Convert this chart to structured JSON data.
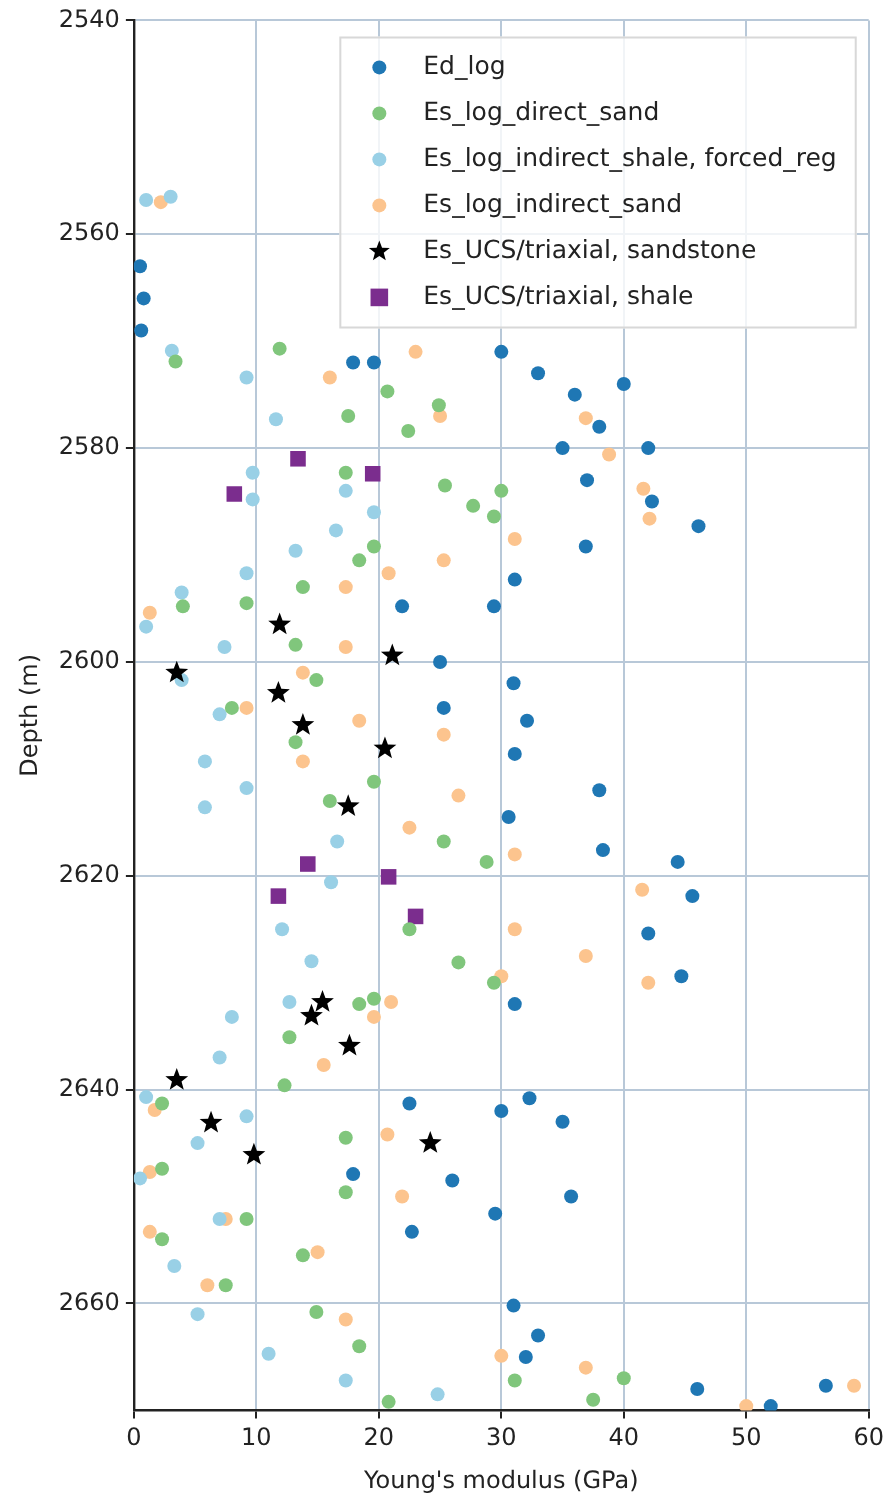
{
  "chart_data": {
    "type": "scatter",
    "xlabel": "Young's modulus (GPa)",
    "ylabel": "Depth (m)",
    "xlim": [
      0,
      60
    ],
    "xticks": [
      0,
      10,
      20,
      30,
      40,
      50,
      60
    ],
    "ylim": [
      2670,
      2540
    ],
    "yticks": [
      2540,
      2560,
      2580,
      2600,
      2620,
      2640,
      2660
    ],
    "grid": true,
    "legend": "top right",
    "series": [
      {
        "name": "Ed_log",
        "color": "#1f77b4",
        "marker": "circle",
        "x": [
          0.5,
          0.8,
          0.6,
          17.9,
          19.6,
          30,
          33,
          36,
          40,
          38,
          35,
          42,
          37,
          42.3,
          46.1,
          36.9,
          31.1,
          29.4,
          21.9,
          25,
          31,
          32.1,
          25.3,
          31.1,
          38,
          30.6,
          38.3,
          44.4,
          45.6,
          42,
          44.7,
          31.1,
          32.3,
          22.5,
          30,
          35,
          17.9,
          26,
          35.7,
          22.7,
          29.5,
          31,
          33,
          32,
          46,
          56.5,
          52
        ],
        "values": [
          2563,
          2566,
          2569,
          2572,
          2572,
          2571,
          2573,
          2575,
          2574,
          2578,
          2580,
          2580,
          2583,
          2585,
          2587.3,
          2589.2,
          2592.3,
          2594.8,
          2594.8,
          2600,
          2602,
          2605.5,
          2604.3,
          2608.6,
          2612,
          2614.5,
          2617.6,
          2618.7,
          2621.9,
          2625.4,
          2629.4,
          2632,
          2640.8,
          2641.3,
          2642,
          2643,
          2647.9,
          2648.5,
          2650,
          2653.3,
          2651.6,
          2660.2,
          2663,
          2665,
          2668,
          2667.7,
          2669.6
        ]
      },
      {
        "name": "Es_log_direct_sand",
        "color": "#80c67c",
        "marker": "circle",
        "x": [
          3.4,
          11.9,
          20.7,
          24.9,
          17.5,
          22.4,
          17.3,
          25.4,
          30,
          27.7,
          29.4,
          19.6,
          18.4,
          13.8,
          9.2,
          4,
          13.2,
          14.9,
          8,
          13.2,
          19.6,
          16,
          25.3,
          28.8,
          22.5,
          26.5,
          29.4,
          19.6,
          18.4,
          12.7,
          12.3,
          2.3,
          17.3,
          2.3,
          17.3,
          9.2,
          2.3,
          13.8,
          7.5,
          14.9,
          18.4,
          31.1,
          40,
          37.5,
          20.8
        ],
        "values": [
          2571.9,
          2570.7,
          2574.7,
          2576,
          2577,
          2578.4,
          2582.3,
          2583.5,
          2584,
          2585.4,
          2586.4,
          2589.2,
          2590.5,
          2593,
          2594.5,
          2594.8,
          2598.4,
          2601.7,
          2604.3,
          2607.5,
          2611.2,
          2613,
          2616.8,
          2618.7,
          2625,
          2628.1,
          2630,
          2631.5,
          2632,
          2635.1,
          2639.6,
          2641.3,
          2644.5,
          2647.4,
          2649.6,
          2652.1,
          2654,
          2655.5,
          2658.3,
          2660.8,
          2664,
          2667.2,
          2667,
          2669,
          2669.2
        ]
      },
      {
        "name": "Es_log_indirect_shale, forced_reg",
        "color": "#99d0e6",
        "marker": "circle",
        "x": [
          1,
          3,
          3.1,
          9.2,
          11.6,
          9.7,
          17.3,
          9.7,
          19.6,
          16.5,
          13.2,
          9.2,
          3.9,
          1,
          7.4,
          3.9,
          7,
          5.8,
          9.2,
          5.8,
          16.6,
          16.1,
          12.1,
          14.5,
          12.7,
          8,
          7,
          1,
          9.2,
          5.2,
          0.5,
          7,
          3.3,
          5.2,
          11,
          17.3,
          24.8
        ],
        "values": [
          2556.8,
          2556.5,
          2570.9,
          2573.4,
          2577.3,
          2582.3,
          2584,
          2584.8,
          2586,
          2587.7,
          2589.6,
          2591.7,
          2593.5,
          2596.7,
          2598.6,
          2601.7,
          2604.9,
          2609.3,
          2611.8,
          2613.6,
          2616.8,
          2620.6,
          2625,
          2628,
          2631.8,
          2633.2,
          2637,
          2640.7,
          2642.5,
          2645,
          2648.3,
          2652.1,
          2656.5,
          2661,
          2664.7,
          2667.2,
          2668.5
        ]
      },
      {
        "name": "Es_log_indirect_sand",
        "color": "#fcc48e",
        "marker": "circle",
        "x": [
          2.2,
          16,
          23,
          25,
          36.9,
          38.8,
          41.6,
          42.1,
          31.1,
          25.3,
          20.8,
          17.3,
          1.3,
          17.3,
          13.8,
          9.2,
          18.4,
          25.3,
          13.8,
          26.5,
          22.5,
          31.1,
          41.5,
          31.1,
          36.9,
          30,
          42,
          21,
          19.6,
          15.5,
          1.7,
          20.7,
          1.3,
          21.9,
          7.5,
          1.3,
          15,
          6,
          17.3,
          30,
          36.9,
          58.8,
          50
        ],
        "values": [
          2557,
          2573.4,
          2571,
          2577,
          2577.2,
          2580.6,
          2583.8,
          2586.6,
          2588.5,
          2590.5,
          2591.7,
          2593,
          2595.4,
          2598.6,
          2601,
          2604.3,
          2605.5,
          2606.8,
          2609.3,
          2612.5,
          2615.5,
          2618,
          2621.3,
          2625,
          2627.5,
          2629.4,
          2630,
          2631.8,
          2633.2,
          2637.7,
          2641.9,
          2644.2,
          2647.7,
          2650,
          2652.1,
          2653.3,
          2655.2,
          2658.3,
          2661.5,
          2664.9,
          2666,
          2667.7,
          2669.6
        ]
      },
      {
        "name": "Es_UCS/triaxial, sandstone",
        "color": "#000000",
        "marker": "star",
        "x": [
          11.9,
          21.1,
          3.5,
          11.8,
          13.8,
          20.5,
          17.5,
          15.4,
          14.5,
          17.6,
          3.5,
          6.3,
          9.8,
          24.2
        ],
        "values": [
          2596.5,
          2599.4,
          2601,
          2602.9,
          2605.9,
          2608.1,
          2613.5,
          2631.8,
          2633.1,
          2635.9,
          2639.1,
          2643.1,
          2646.1,
          2645
        ]
      },
      {
        "name": "Es_UCS/triaxial, shale",
        "color": "#7b2d8e",
        "marker": "square",
        "x": [
          13.4,
          19.5,
          8.2,
          14.2,
          20.8,
          11.8,
          23
        ],
        "values": [
          2581,
          2582.4,
          2584.3,
          2618.9,
          2620.1,
          2621.9,
          2623.8
        ]
      }
    ]
  }
}
